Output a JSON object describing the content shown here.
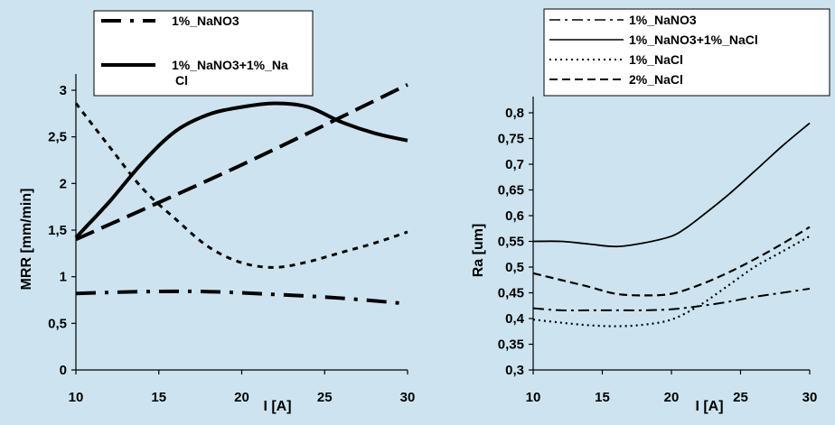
{
  "chart_data": [
    {
      "type": "line",
      "title": "",
      "xlabel": "I [A]",
      "ylabel": "MRR [mm/min]",
      "xlim": [
        10,
        30
      ],
      "ylim": [
        0,
        3
      ],
      "x_ticks": [
        "10",
        "15",
        "20",
        "25",
        "30"
      ],
      "y_ticks": [
        "0",
        "0,5",
        "1",
        "1,5",
        "2",
        "2,5",
        "3"
      ],
      "grid": false,
      "legend_placement": "top",
      "legend": [
        {
          "label_lines": [
            "1%_NaNO3"
          ],
          "style": "dash-dot",
          "width": 4
        },
        {
          "label_lines": [
            "1%_NaNO3+1%_Na",
            "Cl"
          ],
          "style": "solid",
          "width": 4
        }
      ],
      "series": [
        {
          "name": "1%_NaNO3",
          "style": "dash-dot",
          "width": 4,
          "x": [
            10,
            14,
            18,
            22,
            26,
            30
          ],
          "y": [
            0.82,
            0.84,
            0.84,
            0.81,
            0.77,
            0.71
          ]
        },
        {
          "name": "1%_NaNO3+1%_Na Cl",
          "style": "solid",
          "width": 4,
          "x": [
            10,
            12,
            14,
            16,
            18,
            20,
            22,
            24,
            26,
            28,
            30
          ],
          "y": [
            1.42,
            1.8,
            2.22,
            2.56,
            2.74,
            2.82,
            2.86,
            2.82,
            2.66,
            2.54,
            2.46
          ]
        },
        {
          "name": "",
          "style": "long-dash",
          "width": 4,
          "x": [
            10,
            20,
            30
          ],
          "y": [
            1.4,
            2.2,
            3.06
          ]
        },
        {
          "name": "",
          "style": "dotted-heavy",
          "width": 3,
          "x": [
            10,
            12,
            14,
            16,
            18,
            20,
            22,
            24,
            26,
            28,
            30
          ],
          "y": [
            2.86,
            2.4,
            1.95,
            1.62,
            1.32,
            1.15,
            1.1,
            1.16,
            1.26,
            1.36,
            1.48
          ]
        }
      ]
    },
    {
      "type": "line",
      "title": "",
      "xlabel": "I [A]",
      "ylabel": "Ra [um]",
      "xlim": [
        10,
        30
      ],
      "ylim": [
        0.3,
        0.8
      ],
      "x_ticks": [
        "10",
        "15",
        "20",
        "25",
        "30"
      ],
      "y_ticks": [
        "0,3",
        "0,35",
        "0,4",
        "0,45",
        "0,5",
        "0,55",
        "0,6",
        "0,65",
        "0,7",
        "0,75",
        "0,8"
      ],
      "grid": false,
      "legend_placement": "top",
      "legend": [
        {
          "label_lines": [
            "1%_NaNO3"
          ],
          "style": "dash-dot",
          "width": 1.6
        },
        {
          "label_lines": [
            "1%_NaNO3+1%_NaCl"
          ],
          "style": "solid",
          "width": 1.6
        },
        {
          "label_lines": [
            "1%_NaCl"
          ],
          "style": "dotted",
          "width": 2
        },
        {
          "label_lines": [
            "2%_NaCl"
          ],
          "style": "dashed",
          "width": 2
        }
      ],
      "series": [
        {
          "name": "1%_NaNO3",
          "style": "dash-dot",
          "width": 2,
          "x": [
            10,
            12,
            14,
            16,
            18,
            20,
            22,
            24,
            26,
            28,
            30
          ],
          "y": [
            0.42,
            0.416,
            0.416,
            0.416,
            0.416,
            0.418,
            0.424,
            0.432,
            0.442,
            0.45,
            0.458
          ]
        },
        {
          "name": "1%_NaNO3+1%_NaCl",
          "style": "solid",
          "width": 1.8,
          "x": [
            10,
            12,
            14,
            16,
            18,
            20,
            21,
            22,
            24,
            26,
            28,
            30
          ],
          "y": [
            0.55,
            0.55,
            0.545,
            0.54,
            0.547,
            0.56,
            0.575,
            0.595,
            0.638,
            0.686,
            0.735,
            0.78
          ]
        },
        {
          "name": "1%_NaCl",
          "style": "dotted",
          "width": 2.2,
          "x": [
            10,
            12,
            14,
            16,
            18,
            20,
            22,
            24,
            26,
            28,
            30
          ],
          "y": [
            0.398,
            0.392,
            0.387,
            0.385,
            0.388,
            0.398,
            0.425,
            0.462,
            0.5,
            0.53,
            0.56
          ]
        },
        {
          "name": "2%_NaCl",
          "style": "dashed",
          "width": 2.2,
          "x": [
            10,
            12,
            14,
            16,
            18,
            20,
            22,
            24,
            26,
            28,
            30
          ],
          "y": [
            0.488,
            0.475,
            0.462,
            0.448,
            0.445,
            0.448,
            0.465,
            0.488,
            0.515,
            0.545,
            0.578
          ]
        }
      ]
    }
  ]
}
